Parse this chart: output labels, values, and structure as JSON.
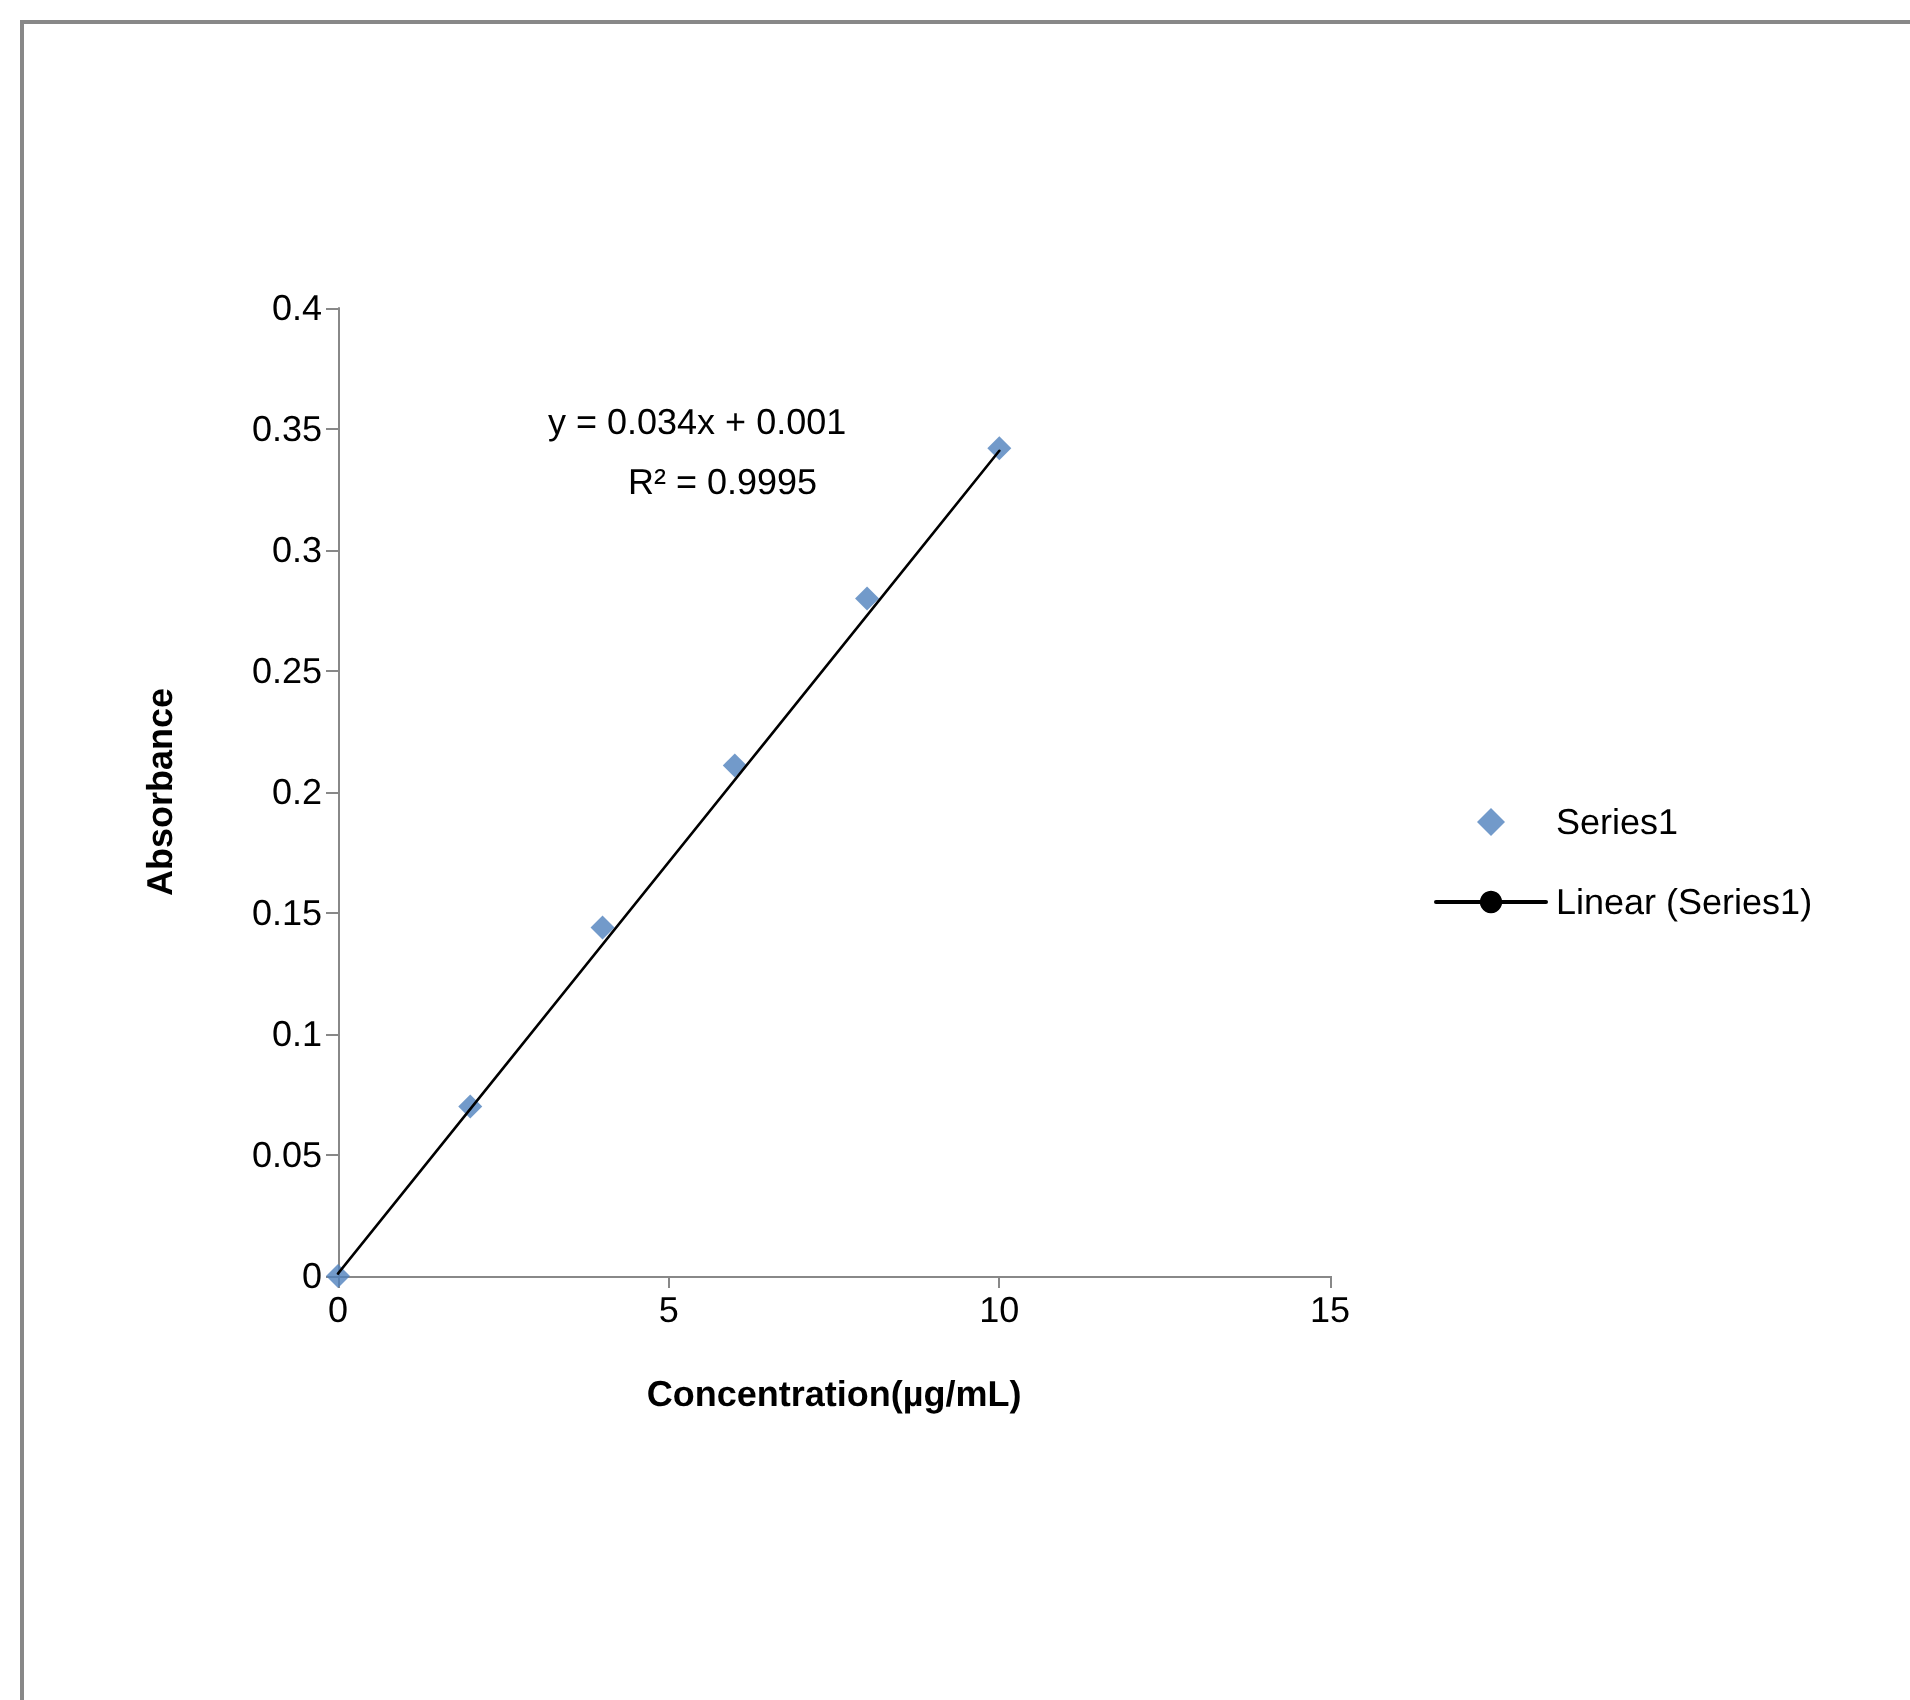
{
  "chart_data": {
    "type": "scatter",
    "xlabel": "Concentration(µg/mL)",
    "ylabel": "Absorbance",
    "annotations": [
      "y = 0.034x + 0.001",
      "R² = 0.9995"
    ],
    "series": [
      {
        "name": "Series1",
        "color": "#4f81bd",
        "marker": "diamond",
        "x": [
          0,
          2,
          4,
          6,
          8,
          10
        ],
        "values": [
          0,
          0.07,
          0.144,
          0.211,
          0.28,
          0.342
        ]
      },
      {
        "name": "Linear (Series1)",
        "type": "line",
        "color": "#000000",
        "marker": "none",
        "x": [
          0,
          10
        ],
        "values": [
          0.001,
          0.341
        ]
      }
    ],
    "xlim": [
      0,
      15
    ],
    "xticks": [
      0,
      5,
      10,
      15
    ],
    "ylim": [
      0,
      0.4
    ],
    "yticks": [
      0,
      0.05,
      0.1,
      0.15,
      0.2,
      0.25,
      0.3,
      0.35,
      0.4
    ],
    "grid": false,
    "legend": "right"
  }
}
